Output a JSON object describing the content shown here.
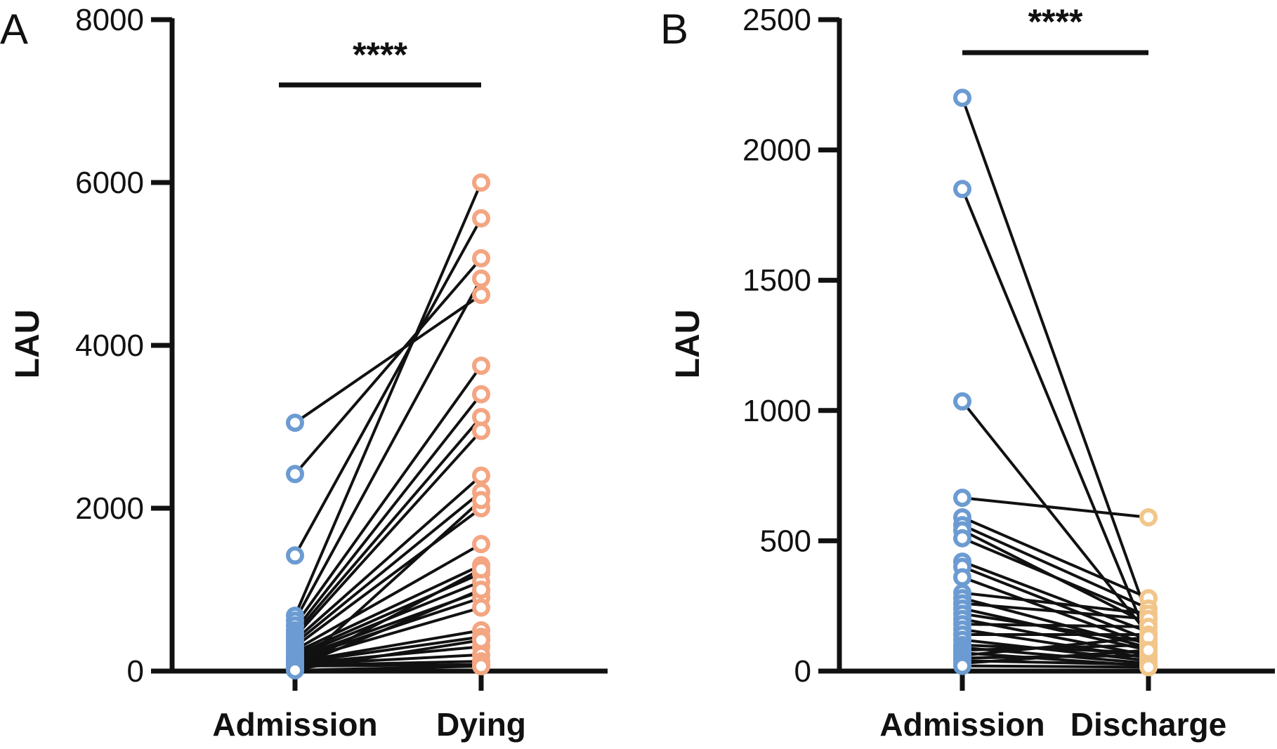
{
  "chart_data": [
    {
      "panel": "A",
      "type": "scatter",
      "subtype": "paired before-after",
      "ylabel": "LAU",
      "ylim": [
        0,
        8000
      ],
      "yticks": [
        "0",
        "2000",
        "4000",
        "6000",
        "8000"
      ],
      "categories": [
        "Admission",
        "Dying"
      ],
      "significance": "****",
      "colors": {
        "Admission": "#6b9bd2",
        "Dying": "#f4a582",
        "lines": "#111111"
      },
      "pairs": [
        [
          3050,
          4620
        ],
        [
          2420,
          5070
        ],
        [
          1420,
          5560
        ],
        [
          680,
          6000
        ],
        [
          620,
          4820
        ],
        [
          560,
          3750
        ],
        [
          500,
          3400
        ],
        [
          460,
          3120
        ],
        [
          420,
          2950
        ],
        [
          380,
          2400
        ],
        [
          340,
          2200
        ],
        [
          300,
          2000
        ],
        [
          260,
          1560
        ],
        [
          230,
          1300
        ],
        [
          200,
          1200
        ],
        [
          180,
          1100
        ],
        [
          160,
          980
        ],
        [
          140,
          900
        ],
        [
          120,
          780
        ],
        [
          110,
          500
        ],
        [
          100,
          420
        ],
        [
          90,
          300
        ],
        [
          80,
          200
        ],
        [
          70,
          120
        ],
        [
          60,
          80
        ],
        [
          50,
          1000
        ],
        [
          40,
          1250
        ],
        [
          30,
          2100
        ],
        [
          20,
          380
        ],
        [
          10,
          60
        ]
      ]
    },
    {
      "panel": "B",
      "type": "scatter",
      "subtype": "paired before-after",
      "ylabel": "LAU",
      "ylim": [
        0,
        2500
      ],
      "yticks": [
        "0",
        "500",
        "1000",
        "1500",
        "2000",
        "2500"
      ],
      "categories": [
        "Admission",
        "Discharge"
      ],
      "significance": "****",
      "colors": {
        "Admission": "#6b9bd2",
        "Discharge": "#f2c68a",
        "lines": "#111111"
      },
      "pairs": [
        [
          2200,
          200
        ],
        [
          1850,
          120
        ],
        [
          1035,
          140
        ],
        [
          665,
          590
        ],
        [
          590,
          280
        ],
        [
          560,
          240
        ],
        [
          540,
          180
        ],
        [
          510,
          210
        ],
        [
          420,
          150
        ],
        [
          400,
          120
        ],
        [
          360,
          100
        ],
        [
          300,
          220
        ],
        [
          280,
          90
        ],
        [
          260,
          200
        ],
        [
          240,
          80
        ],
        [
          220,
          110
        ],
        [
          200,
          60
        ],
        [
          180,
          170
        ],
        [
          160,
          50
        ],
        [
          140,
          140
        ],
        [
          120,
          40
        ],
        [
          100,
          70
        ],
        [
          90,
          30
        ],
        [
          80,
          100
        ],
        [
          70,
          20
        ],
        [
          60,
          130
        ],
        [
          50,
          60
        ],
        [
          40,
          25
        ],
        [
          30,
          80
        ],
        [
          20,
          15
        ]
      ]
    }
  ]
}
